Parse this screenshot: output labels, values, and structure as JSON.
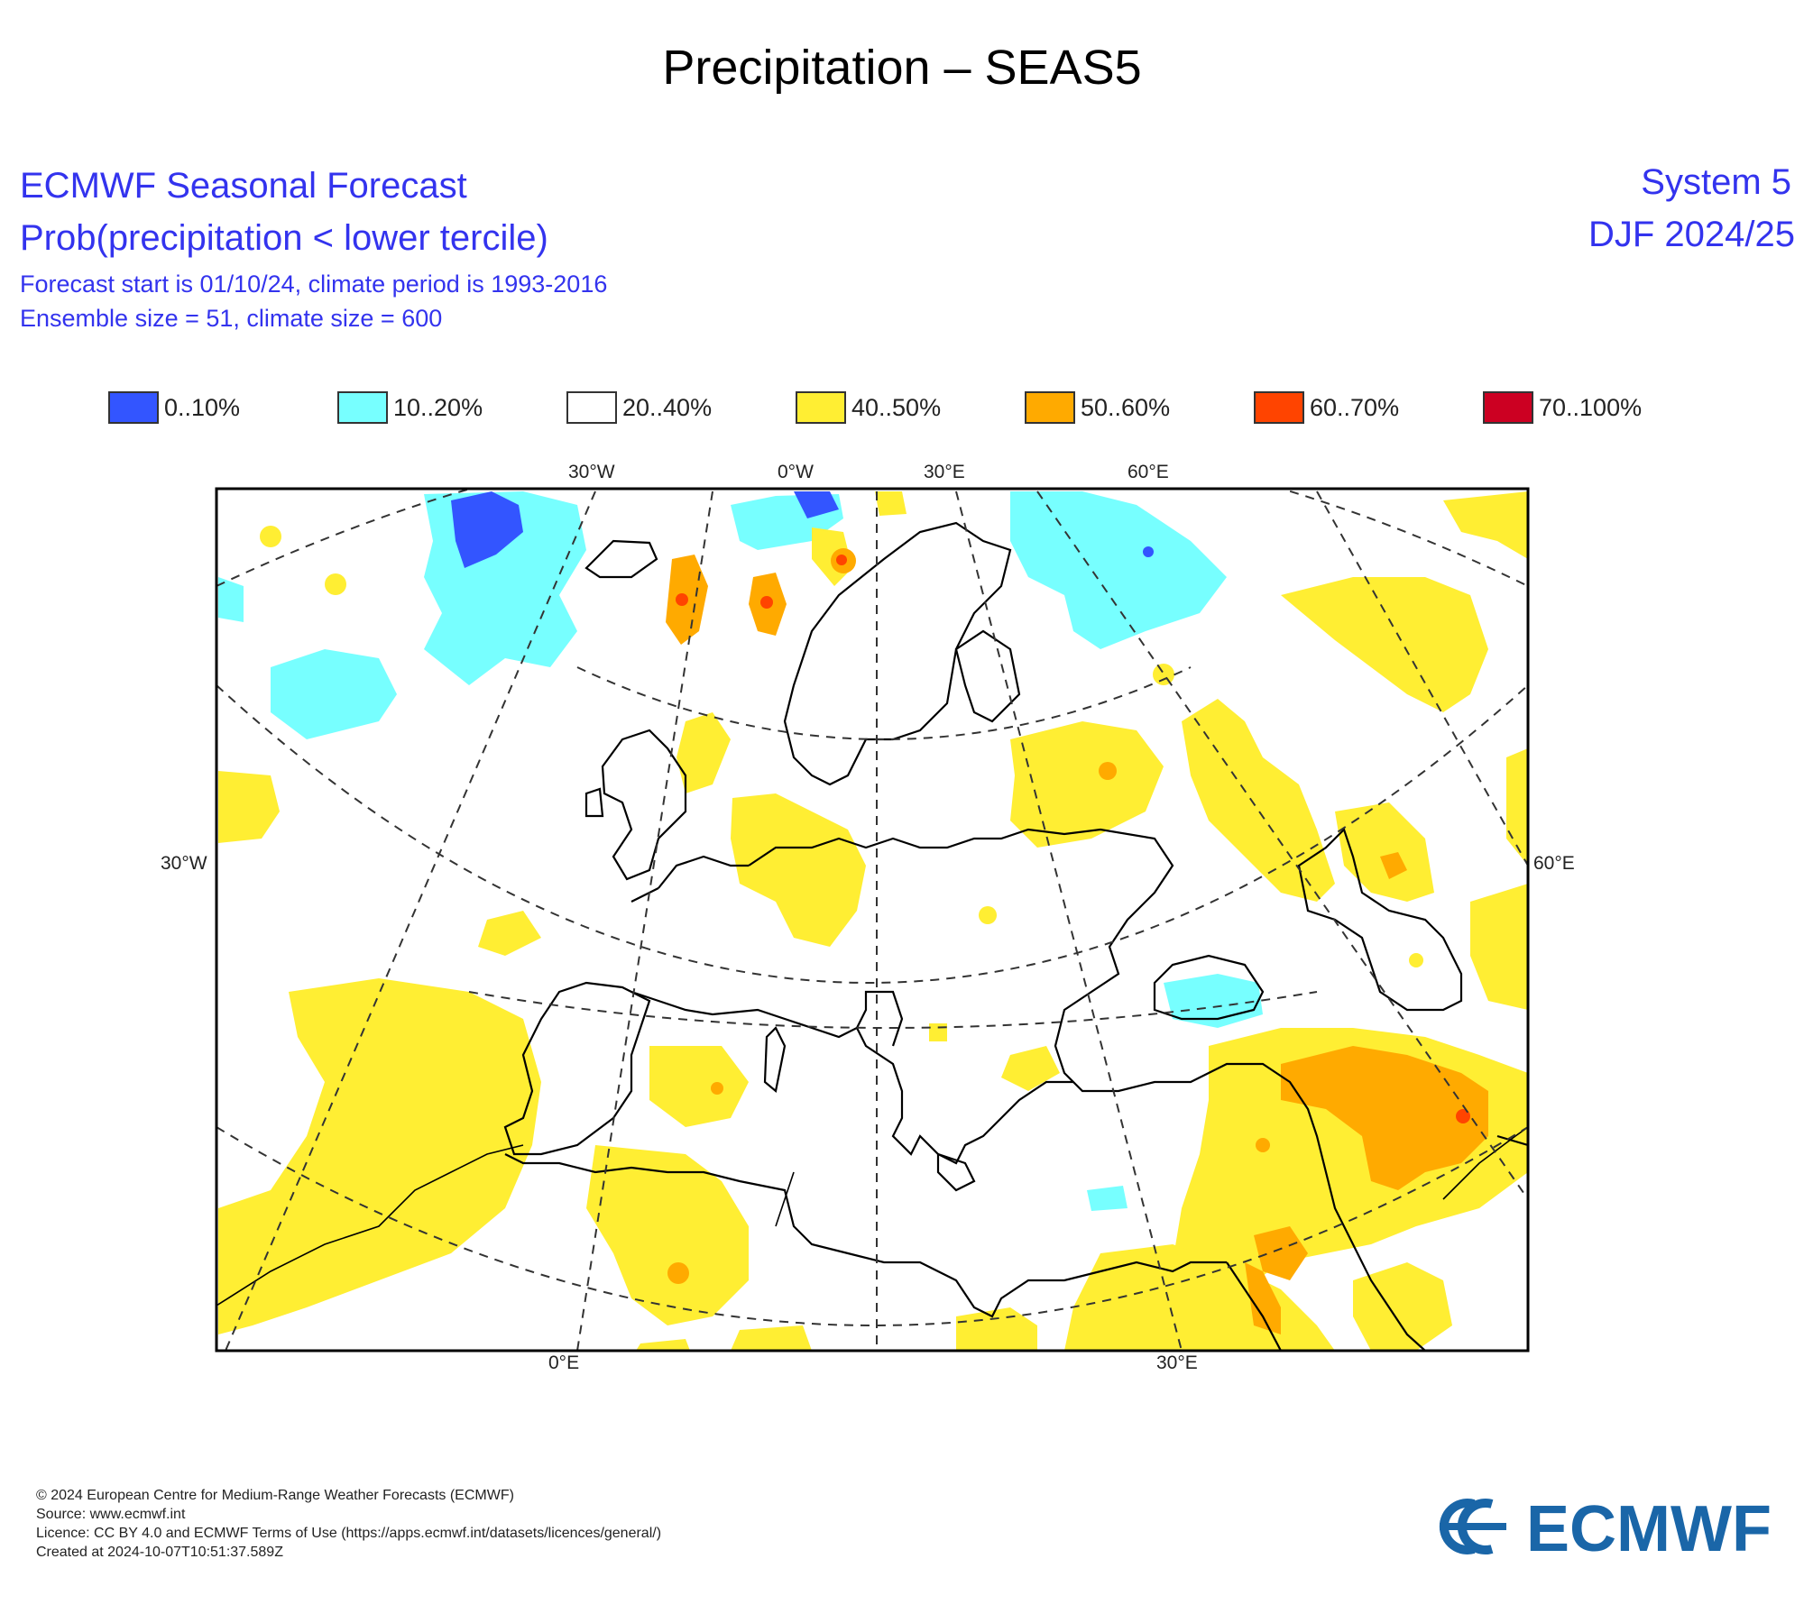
{
  "page_title": "Precipitation – SEAS5",
  "header": {
    "line1": "ECMWF Seasonal Forecast",
    "line2": "Prob(precipitation < lower tercile)",
    "line3": "Forecast start is 01/10/24, climate period is 1993-2016",
    "line4": "Ensemble size = 51, climate size = 600",
    "system": "System 5",
    "season": "DJF 2024/25"
  },
  "legend": [
    {
      "label": "0..10%",
      "color": "#3355ff"
    },
    {
      "label": "10..20%",
      "color": "#77ffff"
    },
    {
      "label": "20..40%",
      "color": "#ffffff"
    },
    {
      "label": "40..50%",
      "color": "#ffee33"
    },
    {
      "label": "50..60%",
      "color": "#ffaa00"
    },
    {
      "label": "60..70%",
      "color": "#ff4400"
    },
    {
      "label": "70..100%",
      "color": "#cc0022"
    }
  ],
  "map": {
    "top_labels": [
      "30°W",
      "0°W",
      "30°E",
      "60°E"
    ],
    "left_label": "30°W",
    "right_label": "60°E",
    "bottom_labels": [
      "0°E",
      "30°E"
    ]
  },
  "footer": {
    "line1": "© 2024 European Centre for Medium-Range Weather Forecasts (ECMWF)",
    "line2": "Source: www.ecmwf.int",
    "line3": "Licence: CC BY 4.0 and ECMWF Terms of Use (https://apps.ecmwf.int/datasets/licences/general/)",
    "line4": "Created at 2024-10-07T10:51:37.589Z"
  },
  "logo": {
    "text": "ECMWF",
    "color": "#1a66a8"
  }
}
